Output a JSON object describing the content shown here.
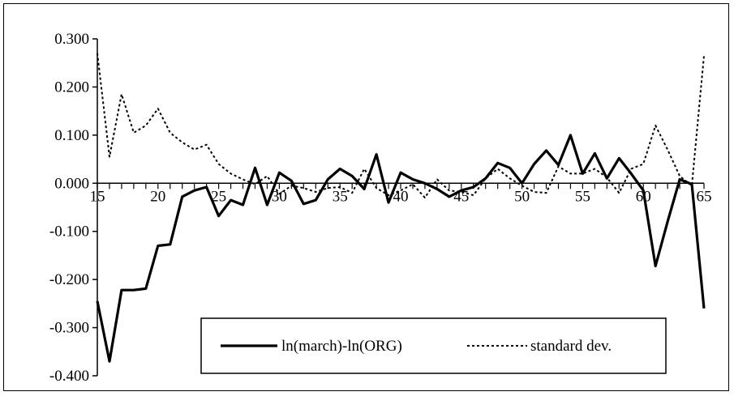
{
  "chart_data": {
    "type": "line",
    "title": "",
    "xlabel": "",
    "ylabel": "",
    "xlim": [
      15,
      65
    ],
    "ylim": [
      -0.4,
      0.3
    ],
    "x_ticks": [
      15,
      20,
      25,
      30,
      35,
      40,
      45,
      50,
      55,
      60,
      65
    ],
    "y_ticks": [
      0.3,
      0.2,
      0.1,
      0.0,
      -0.1,
      -0.2,
      -0.3,
      -0.4
    ],
    "y_tick_labels": [
      "0.300",
      "0.200",
      "0.100",
      "0.000",
      "-0.100",
      "-0.200",
      "-0.300",
      "-0.400"
    ],
    "x_tick_labels": [
      "15",
      "20",
      "25",
      "30",
      "35",
      "40",
      "45",
      "50",
      "55",
      "60",
      "65"
    ],
    "grid": false,
    "legend_position": "bottom-center",
    "x": [
      15,
      16,
      17,
      18,
      19,
      20,
      21,
      22,
      23,
      24,
      25,
      26,
      27,
      28,
      29,
      30,
      31,
      32,
      33,
      34,
      35,
      36,
      37,
      38,
      39,
      40,
      41,
      42,
      43,
      44,
      45,
      46,
      47,
      48,
      49,
      50,
      51,
      52,
      53,
      54,
      55,
      56,
      57,
      58,
      59,
      60,
      61,
      62,
      63,
      64,
      65
    ],
    "series": [
      {
        "name": "ln(march)-ln(ORG)",
        "style": "solid",
        "color": "#000000",
        "values": [
          -0.245,
          -0.37,
          -0.222,
          -0.222,
          -0.219,
          -0.13,
          -0.127,
          -0.028,
          -0.015,
          -0.008,
          -0.068,
          -0.035,
          -0.045,
          0.032,
          -0.045,
          0.022,
          0.005,
          -0.043,
          -0.035,
          0.008,
          0.03,
          0.015,
          -0.012,
          0.06,
          -0.04,
          0.022,
          0.008,
          0.0,
          -0.012,
          -0.028,
          -0.015,
          -0.008,
          0.01,
          0.042,
          0.032,
          0.0,
          0.04,
          0.068,
          0.038,
          0.1,
          0.02,
          0.062,
          0.01,
          0.052,
          0.02,
          -0.015,
          -0.172,
          -0.08,
          0.008,
          -0.002,
          -0.26
        ]
      },
      {
        "name": "standard dev.",
        "style": "dashed",
        "color": "#000000",
        "values": [
          0.27,
          0.055,
          0.185,
          0.105,
          0.12,
          0.155,
          0.105,
          0.085,
          0.07,
          0.08,
          0.04,
          0.02,
          0.008,
          -0.002,
          0.015,
          -0.022,
          -0.005,
          -0.01,
          -0.018,
          -0.01,
          -0.008,
          -0.02,
          0.03,
          -0.01,
          -0.025,
          -0.015,
          -0.002,
          -0.03,
          0.008,
          -0.015,
          -0.018,
          -0.025,
          0.01,
          0.03,
          0.01,
          -0.005,
          -0.018,
          -0.02,
          0.035,
          0.02,
          0.02,
          0.03,
          0.012,
          -0.02,
          0.03,
          0.04,
          0.12,
          0.07,
          0.015,
          -0.005,
          0.265
        ]
      }
    ]
  }
}
